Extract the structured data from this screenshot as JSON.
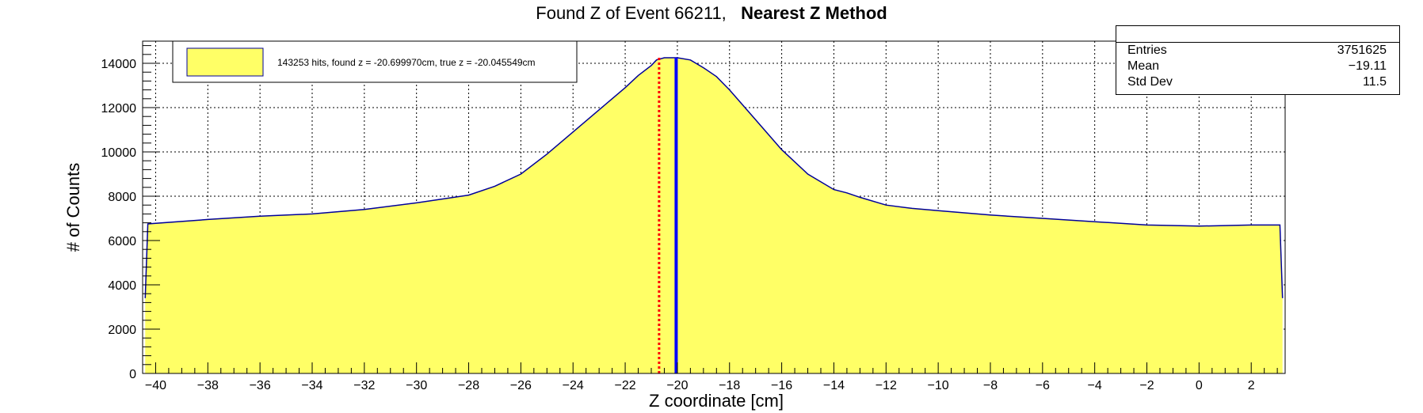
{
  "title": {
    "main": "Found Z of Event 66211,",
    "bold": "Nearest Z Method"
  },
  "stats": [
    {
      "label": "Entries",
      "value": "3751625"
    },
    {
      "label": "Mean",
      "value": "−19.11"
    },
    {
      "label": "Std Dev",
      "value": "11.5"
    }
  ],
  "legend": {
    "text": "143253 hits, found z = -20.699970cm, true z = -20.045549cm"
  },
  "colors": {
    "fill": "#ffff66",
    "line": "#000099",
    "found": "#0000ff",
    "truth": "#ff0000"
  },
  "chart_data": {
    "type": "area",
    "xlabel": "Z coordinate [cm]",
    "ylabel": "# of Counts",
    "xlim": [
      -40.5,
      3.3
    ],
    "ylim": [
      0,
      15000
    ],
    "xticks": [
      -40,
      -38,
      -36,
      -34,
      -32,
      -30,
      -28,
      -26,
      -24,
      -22,
      -20,
      -18,
      -16,
      -14,
      -12,
      -10,
      -8,
      -6,
      -4,
      -2,
      0,
      2
    ],
    "yticks": [
      0,
      2000,
      4000,
      6000,
      8000,
      10000,
      12000,
      14000
    ],
    "grid": true,
    "legend_position": "top-left",
    "series": [
      {
        "x": [
          -40.4,
          -40.3,
          -38,
          -36,
          -34,
          -32,
          -30,
          -28,
          -27,
          -26,
          -25,
          -24,
          -23,
          -22,
          -21.5,
          -21,
          -20.8,
          -20.5,
          -20,
          -19.5,
          -19,
          -18.5,
          -18,
          -17,
          -16,
          -15,
          -14,
          -13.5,
          -13,
          -12,
          -11,
          -10,
          -8,
          -6,
          -4,
          -2,
          0,
          2,
          3.1,
          3.2
        ],
        "y": [
          3400,
          6750,
          6950,
          7100,
          7200,
          7400,
          7700,
          8050,
          8450,
          9000,
          9900,
          10900,
          11900,
          12900,
          13450,
          13900,
          14150,
          14250,
          14250,
          14150,
          13800,
          13400,
          12800,
          11450,
          10100,
          9000,
          8300,
          8150,
          7950,
          7600,
          7450,
          7350,
          7150,
          7000,
          6850,
          6700,
          6650,
          6700,
          6700,
          3400
        ]
      }
    ],
    "markers": [
      {
        "kind": "found",
        "x": -20.69997,
        "style": "dotted"
      },
      {
        "kind": "true",
        "x": -20.045549,
        "style": "solid"
      }
    ]
  }
}
